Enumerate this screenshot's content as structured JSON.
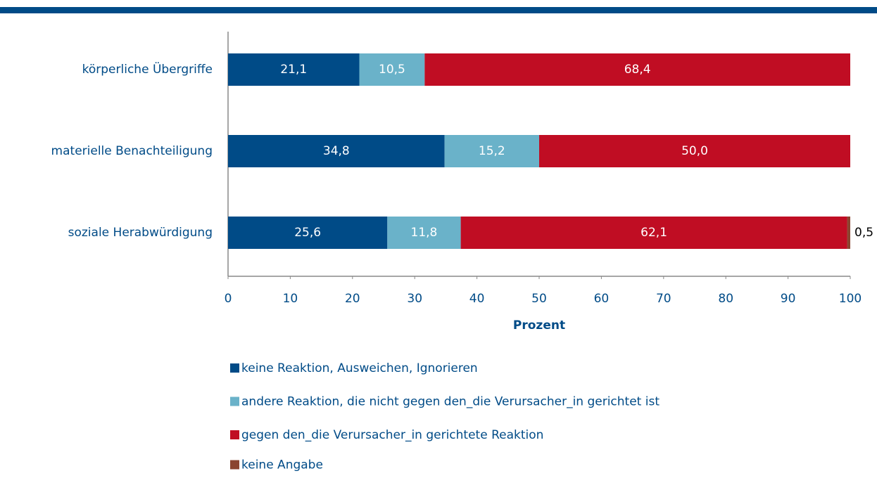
{
  "chart_data": {
    "type": "stacked-bar-horizontal",
    "categories": [
      "körperliche Übergriffe",
      "materielle Benachteiligung",
      "soziale Herabwürdigung"
    ],
    "series": [
      {
        "name": "keine Reaktion, Ausweichen, Ignorieren",
        "color": "#004b87",
        "values": [
          21.1,
          34.8,
          25.6
        ],
        "value_labels": [
          "21,1",
          "34,8",
          "25,6"
        ]
      },
      {
        "name": "andere Reaktion, die nicht gegen den_die Verursacher_in gerichtet ist",
        "color": "#6ab2c9",
        "values": [
          10.5,
          15.2,
          11.8
        ],
        "value_labels": [
          "10,5",
          "15,2",
          "11,8"
        ]
      },
      {
        "name": "gegen den_die Verursacher_in gerichtete Reaktion",
        "color": "#c00d23",
        "values": [
          68.4,
          50.0,
          62.1
        ],
        "value_labels": [
          "68,4",
          "50,0",
          "62,1"
        ]
      },
      {
        "name": "keine Angabe",
        "color": "#8b4530",
        "values": [
          null,
          null,
          0.5
        ],
        "value_labels": [
          null,
          null,
          "0,5"
        ]
      }
    ],
    "xlabel": "Prozent",
    "xlim": [
      0,
      100
    ],
    "xticks": [
      0,
      10,
      20,
      30,
      40,
      50,
      60,
      70,
      80,
      90,
      100
    ],
    "grid": false,
    "legend": "bottom"
  }
}
